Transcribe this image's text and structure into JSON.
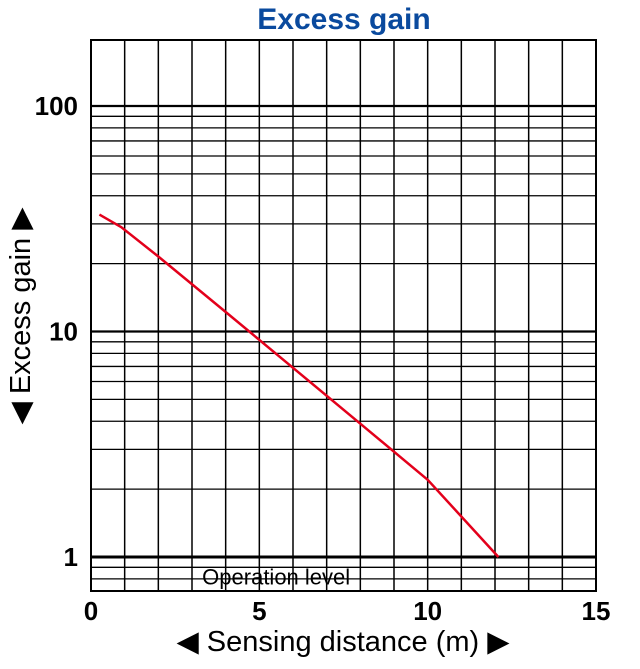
{
  "chart_data": {
    "type": "line",
    "title": "Excess gain",
    "xlabel": "◀ Sensing distance (m) ▶",
    "ylabel": "◀ Excess gain ▶",
    "x_scale": "linear",
    "y_scale": "log",
    "xlim": [
      0,
      15
    ],
    "ylim": [
      0.65,
      200
    ],
    "x_ticks": [
      0,
      5,
      10,
      15
    ],
    "x_tick_labels": [
      "0",
      "5",
      "10",
      "15"
    ],
    "y_ticks": [
      1,
      10,
      100
    ],
    "y_tick_labels": [
      "1",
      "10",
      "100"
    ],
    "x_minor_step": 1,
    "grid": true,
    "series": [
      {
        "name": "",
        "x": [
          0.25,
          0.9,
          2,
          4,
          6,
          8,
          10,
          12.1
        ],
        "y": [
          33,
          29,
          21.5,
          12.2,
          6.9,
          3.9,
          2.2,
          1.0
        ]
      }
    ],
    "annotations": [
      {
        "text": "Operation level",
        "x": 5.5,
        "y": 0.82
      }
    ],
    "reference_lines": [
      {
        "axis": "y",
        "value": 1,
        "label": "Operation level"
      }
    ],
    "colors": {
      "title": "#0a4a9e",
      "series": "#e3001b",
      "grid": "#000000"
    }
  }
}
